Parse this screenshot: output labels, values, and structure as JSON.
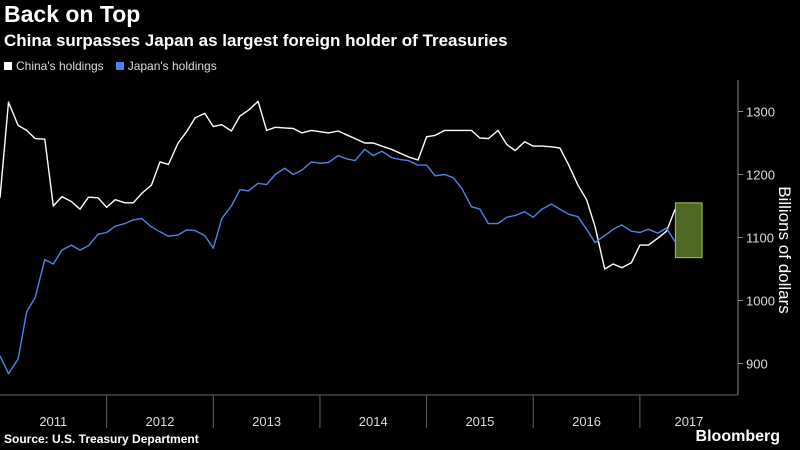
{
  "header": {
    "title": "Back on Top",
    "subtitle": "China surpasses Japan as largest foreign holder of Treasuries"
  },
  "footer": {
    "source": "Source: U.S. Treasury Department",
    "brand": "Bloomberg"
  },
  "colors": {
    "china": "#ffffff",
    "japan": "#4a86e8",
    "highlight_fill": "#5a7a2a",
    "highlight_stroke": "#a8c64a"
  },
  "chart_data": {
    "type": "line",
    "ylabel": "Billions of dollars",
    "ylim": [
      850,
      1350
    ],
    "yticks": [
      900,
      1000,
      1100,
      1200,
      1300
    ],
    "x_range": [
      2011.0,
      2017.583
    ],
    "x_tick_labels": [
      "2011",
      "2012",
      "2013",
      "2014",
      "2015",
      "2016",
      "2017"
    ],
    "grid": false,
    "legend_position": "top-left",
    "highlight_box": {
      "x": [
        2017.333,
        2017.583
      ],
      "y": [
        1068,
        1155
      ]
    },
    "series": [
      {
        "name": "China's holdings",
        "color": "#ffffff",
        "values": [
          [
            2011.0,
            1163
          ],
          [
            2011.08,
            1315
          ],
          [
            2011.17,
            1278
          ],
          [
            2011.25,
            1270
          ],
          [
            2011.33,
            1257
          ],
          [
            2011.42,
            1256
          ],
          [
            2011.5,
            1150
          ],
          [
            2011.58,
            1165
          ],
          [
            2011.67,
            1157
          ],
          [
            2011.75,
            1145
          ],
          [
            2011.83,
            1164
          ],
          [
            2011.92,
            1163
          ],
          [
            2012.0,
            1148
          ],
          [
            2012.08,
            1160
          ],
          [
            2012.17,
            1155
          ],
          [
            2012.25,
            1155
          ],
          [
            2012.33,
            1170
          ],
          [
            2012.42,
            1183
          ],
          [
            2012.5,
            1220
          ],
          [
            2012.58,
            1216
          ],
          [
            2012.67,
            1250
          ],
          [
            2012.75,
            1268
          ],
          [
            2012.83,
            1290
          ],
          [
            2012.92,
            1297
          ],
          [
            2013.0,
            1276
          ],
          [
            2013.08,
            1279
          ],
          [
            2013.17,
            1269
          ],
          [
            2013.25,
            1293
          ],
          [
            2013.33,
            1302
          ],
          [
            2013.42,
            1316
          ],
          [
            2013.5,
            1270
          ],
          [
            2013.58,
            1275
          ],
          [
            2013.67,
            1274
          ],
          [
            2013.75,
            1273
          ],
          [
            2013.83,
            1266
          ],
          [
            2013.92,
            1270
          ],
          [
            2014.0,
            1268
          ],
          [
            2014.08,
            1266
          ],
          [
            2014.17,
            1269
          ],
          [
            2014.25,
            1263
          ],
          [
            2014.33,
            1257
          ],
          [
            2014.42,
            1250
          ],
          [
            2014.5,
            1250
          ],
          [
            2014.58,
            1245
          ],
          [
            2014.67,
            1240
          ],
          [
            2014.75,
            1234
          ],
          [
            2014.83,
            1228
          ],
          [
            2014.92,
            1223
          ],
          [
            2015.0,
            1260
          ],
          [
            2015.08,
            1262
          ],
          [
            2015.17,
            1270
          ],
          [
            2015.25,
            1270
          ],
          [
            2015.33,
            1270
          ],
          [
            2015.42,
            1270
          ],
          [
            2015.5,
            1258
          ],
          [
            2015.58,
            1257
          ],
          [
            2015.67,
            1270
          ],
          [
            2015.75,
            1248
          ],
          [
            2015.83,
            1238
          ],
          [
            2015.92,
            1252
          ],
          [
            2016.0,
            1245
          ],
          [
            2016.08,
            1245
          ],
          [
            2016.17,
            1244
          ],
          [
            2016.25,
            1242
          ],
          [
            2016.33,
            1216
          ],
          [
            2016.42,
            1183
          ],
          [
            2016.5,
            1160
          ],
          [
            2016.58,
            1117
          ],
          [
            2016.67,
            1050
          ],
          [
            2016.75,
            1058
          ],
          [
            2016.83,
            1052
          ],
          [
            2016.92,
            1060
          ],
          [
            2017.0,
            1088
          ],
          [
            2017.08,
            1088
          ],
          [
            2017.17,
            1099
          ],
          [
            2017.25,
            1110
          ],
          [
            2017.33,
            1145
          ]
        ]
      },
      {
        "name": "Japan's holdings",
        "color": "#4a86e8",
        "values": [
          [
            2011.0,
            912
          ],
          [
            2011.08,
            884
          ],
          [
            2011.17,
            907
          ],
          [
            2011.25,
            982
          ],
          [
            2011.33,
            1005
          ],
          [
            2011.42,
            1065
          ],
          [
            2011.5,
            1058
          ],
          [
            2011.58,
            1080
          ],
          [
            2011.67,
            1088
          ],
          [
            2011.75,
            1080
          ],
          [
            2011.83,
            1087
          ],
          [
            2011.92,
            1105
          ],
          [
            2012.0,
            1108
          ],
          [
            2012.08,
            1118
          ],
          [
            2012.17,
            1122
          ],
          [
            2012.25,
            1128
          ],
          [
            2012.33,
            1130
          ],
          [
            2012.42,
            1117
          ],
          [
            2012.5,
            1109
          ],
          [
            2012.58,
            1102
          ],
          [
            2012.67,
            1104
          ],
          [
            2012.75,
            1112
          ],
          [
            2012.83,
            1111
          ],
          [
            2012.92,
            1103
          ],
          [
            2013.0,
            1083
          ],
          [
            2013.08,
            1130
          ],
          [
            2013.17,
            1150
          ],
          [
            2013.25,
            1176
          ],
          [
            2013.33,
            1174
          ],
          [
            2013.42,
            1186
          ],
          [
            2013.5,
            1184
          ],
          [
            2013.58,
            1200
          ],
          [
            2013.67,
            1210
          ],
          [
            2013.75,
            1200
          ],
          [
            2013.83,
            1207
          ],
          [
            2013.92,
            1220
          ],
          [
            2014.0,
            1218
          ],
          [
            2014.08,
            1219
          ],
          [
            2014.17,
            1230
          ],
          [
            2014.25,
            1225
          ],
          [
            2014.33,
            1222
          ],
          [
            2014.42,
            1240
          ],
          [
            2014.5,
            1230
          ],
          [
            2014.58,
            1237
          ],
          [
            2014.67,
            1227
          ],
          [
            2014.75,
            1224
          ],
          [
            2014.83,
            1222
          ],
          [
            2014.92,
            1215
          ],
          [
            2015.0,
            1215
          ],
          [
            2015.08,
            1198
          ],
          [
            2015.17,
            1200
          ],
          [
            2015.25,
            1195
          ],
          [
            2015.33,
            1178
          ],
          [
            2015.42,
            1149
          ],
          [
            2015.5,
            1145
          ],
          [
            2015.58,
            1122
          ],
          [
            2015.67,
            1122
          ],
          [
            2015.75,
            1132
          ],
          [
            2015.83,
            1135
          ],
          [
            2015.92,
            1141
          ],
          [
            2016.0,
            1132
          ],
          [
            2016.08,
            1145
          ],
          [
            2016.17,
            1153
          ],
          [
            2016.25,
            1145
          ],
          [
            2016.33,
            1137
          ],
          [
            2016.42,
            1133
          ],
          [
            2016.5,
            1113
          ],
          [
            2016.58,
            1092
          ],
          [
            2016.67,
            1103
          ],
          [
            2016.75,
            1113
          ],
          [
            2016.83,
            1120
          ],
          [
            2016.92,
            1110
          ],
          [
            2017.0,
            1108
          ],
          [
            2017.08,
            1113
          ],
          [
            2017.17,
            1107
          ],
          [
            2017.25,
            1115
          ],
          [
            2017.33,
            1093
          ]
        ]
      }
    ]
  }
}
